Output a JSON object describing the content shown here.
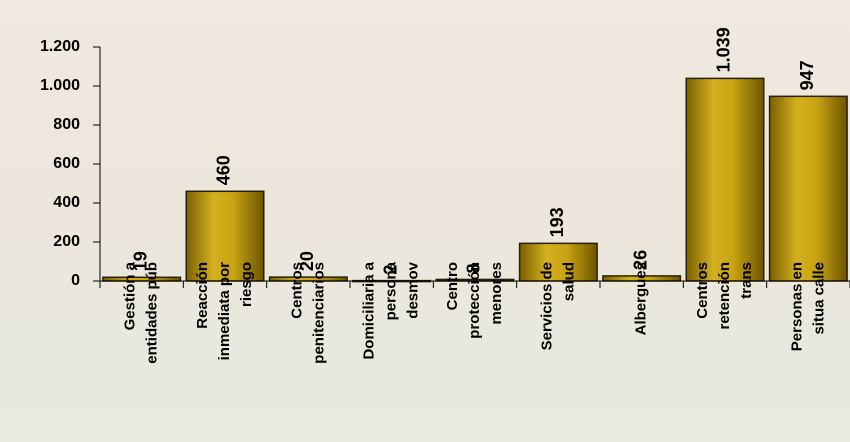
{
  "chart_data": {
    "type": "bar",
    "categories": [
      [
        "Gestión a",
        "entidades púb"
      ],
      [
        "Reacción",
        "inmediata por",
        "riesgo"
      ],
      [
        "Centros",
        "penitenciarios"
      ],
      [
        "Domiciliaria a",
        "persona",
        "desmov"
      ],
      [
        "Centro",
        "protección",
        "menores"
      ],
      [
        "Servicios de",
        "salud"
      ],
      [
        "Albergues"
      ],
      [
        "Centros",
        "retención",
        "trans"
      ],
      [
        "Personas en",
        "situa calle"
      ]
    ],
    "values": [
      19,
      460,
      20,
      2,
      8,
      193,
      26,
      1039,
      947
    ],
    "value_labels": [
      "19",
      "460",
      "20",
      "2",
      "8",
      "193",
      "26",
      "1.039",
      "947"
    ],
    "color": "#b8960c",
    "ylim": [
      0,
      1200
    ],
    "yticks": [
      0,
      200,
      400,
      600,
      800,
      {
        "value": 1000,
        "label": "1.000"
      },
      {
        "value": 1200,
        "label": "1.200"
      }
    ]
  }
}
